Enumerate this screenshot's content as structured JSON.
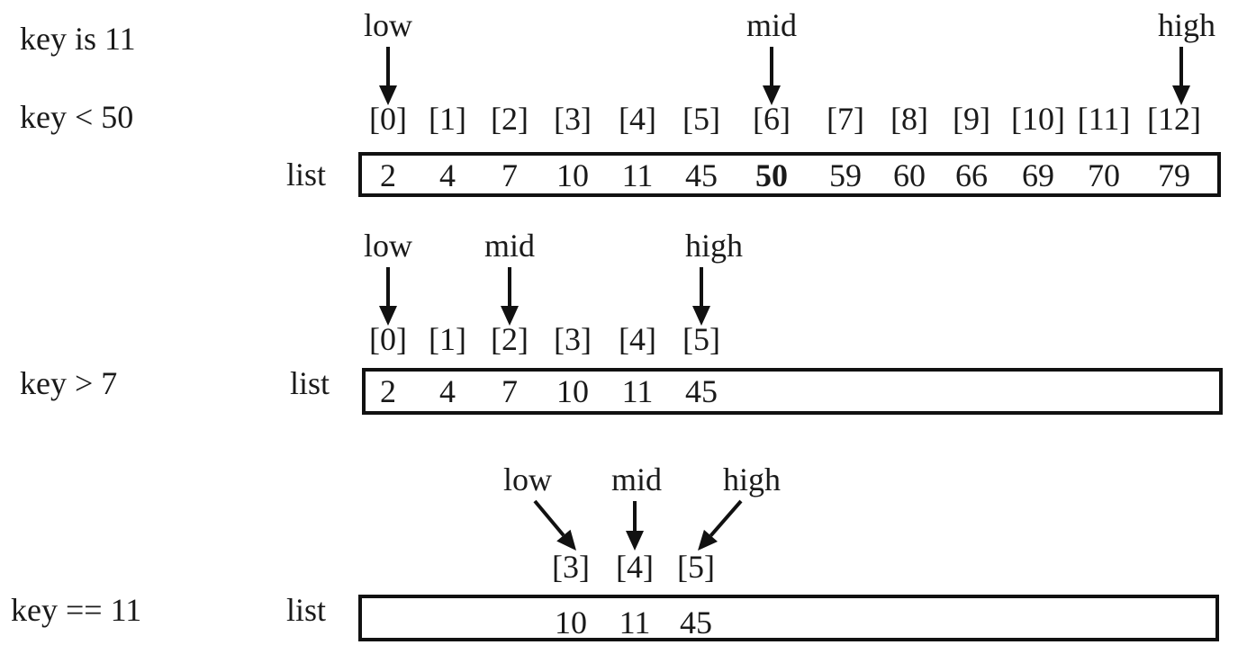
{
  "steps": [
    {
      "condition": "key  is 11",
      "subcondition": "key  < 50",
      "list_label": "list",
      "indices": [
        "[0]",
        "[1]",
        "[2]",
        "[3]",
        "[4]",
        "[5]",
        "[6]",
        "[7]",
        "[8]",
        "[9]",
        "[10]",
        "[11]",
        "[12]"
      ],
      "values": [
        "2",
        "4",
        "7",
        "10",
        "11",
        "45",
        "50",
        "59",
        "60",
        "66",
        "69",
        "70",
        "79"
      ],
      "bold_value": "50",
      "pointers": [
        {
          "label": "low",
          "index": 0
        },
        {
          "label": "mid",
          "index": 6
        },
        {
          "label": "high",
          "index": 12
        }
      ]
    },
    {
      "condition": "key  > 7",
      "list_label": "list",
      "indices": [
        "[0]",
        "[1]",
        "[2]",
        "[3]",
        "[4]",
        "[5]"
      ],
      "values": [
        "2",
        "4",
        "7",
        "10",
        "11",
        "45"
      ],
      "pointers": [
        {
          "label": "low",
          "index": 0
        },
        {
          "label": "mid",
          "index": 2
        },
        {
          "label": "high",
          "index": 5
        }
      ]
    },
    {
      "condition": "key == 11",
      "list_label": "list",
      "indices": [
        "[3]",
        "[4]",
        "[5]"
      ],
      "values": [
        "10",
        "11",
        "45"
      ],
      "pointers": [
        {
          "label": "low",
          "index": 0
        },
        {
          "label": "mid",
          "index": 1
        },
        {
          "label": "high",
          "index": 2
        }
      ]
    }
  ]
}
